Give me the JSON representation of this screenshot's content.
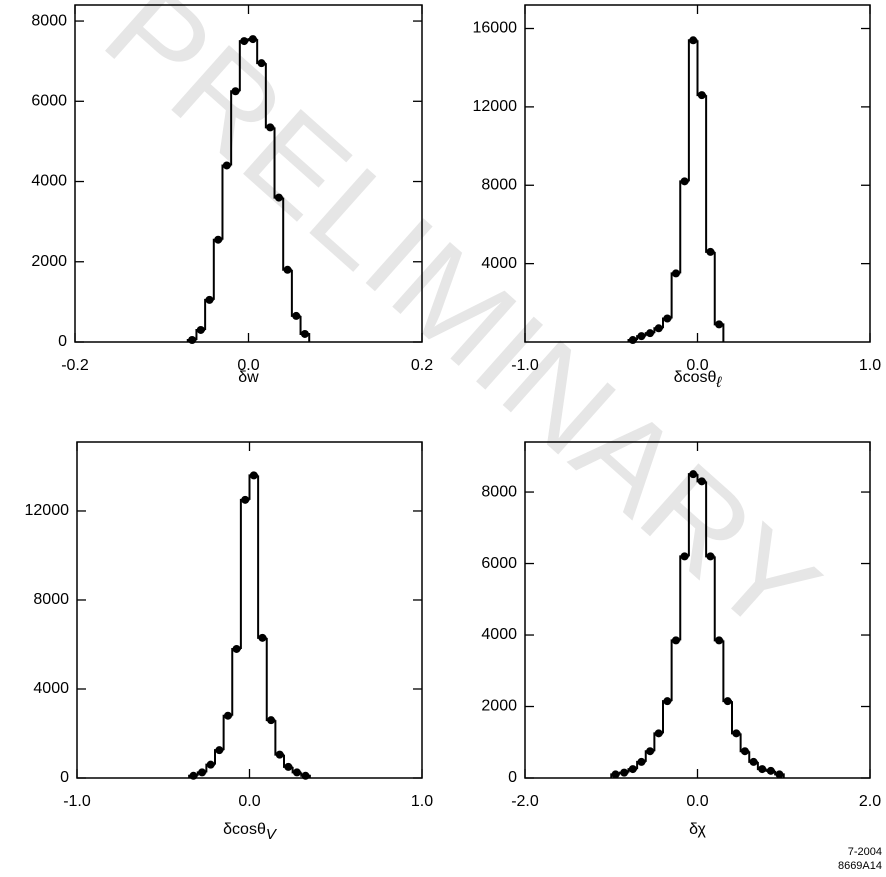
{
  "watermark": "PRELIMINARY",
  "footer": [
    "7-2004",
    "8669A14"
  ],
  "chart_data": [
    {
      "type": "histogram",
      "xlabel": "δw",
      "color": "#000000",
      "bins": [
        -0.07,
        -0.06,
        -0.05,
        -0.04,
        -0.03,
        -0.02,
        -0.01,
        0,
        0.01,
        0.02,
        0.03,
        0.04,
        0.05,
        0.06,
        0.07
      ],
      "counts": [
        50,
        300,
        1050,
        2550,
        4400,
        6250,
        7500,
        7550,
        6950,
        5350,
        3600,
        1800,
        650,
        200
      ],
      "xlim": [
        -0.2,
        0.2
      ],
      "ylim": [
        0,
        8400
      ],
      "xticks": [
        -0.2,
        {
          "value": 0,
          "label": "0.0"
        },
        0.2
      ],
      "yticks": [
        0,
        2000,
        4000,
        6000,
        8000
      ]
    },
    {
      "type": "histogram",
      "xlabel": "δcosθ",
      "xlabel_sub": "ℓ",
      "color": "#000000",
      "bins": [
        -0.4,
        -0.35,
        -0.3,
        -0.25,
        -0.2,
        -0.15,
        -0.1,
        -0.05,
        0,
        0.05,
        0.1,
        0.15
      ],
      "counts": [
        100,
        300,
        450,
        700,
        1200,
        3500,
        8200,
        15400,
        12600,
        4600,
        900
      ],
      "xlim": [
        -1,
        1
      ],
      "ylim": [
        0,
        17200
      ],
      "xticks": [
        {
          "value": -1,
          "label": "-1.0"
        },
        {
          "value": 0,
          "label": "0.0"
        },
        {
          "value": 1,
          "label": "1.0"
        }
      ],
      "yticks": [
        4000,
        8000,
        12000,
        16000
      ]
    },
    {
      "type": "histogram",
      "xlabel": "δcosθ",
      "xlabel_sub": "V",
      "color": "#000000",
      "bins": [
        -0.35,
        -0.3,
        -0.25,
        -0.2,
        -0.15,
        -0.1,
        -0.05,
        0,
        0.05,
        0.1,
        0.15,
        0.2,
        0.25,
        0.3,
        0.35
      ],
      "counts": [
        100,
        250,
        600,
        1250,
        2800,
        5800,
        12500,
        13600,
        6300,
        2600,
        1050,
        500,
        250,
        100
      ],
      "xlim": [
        -1,
        1
      ],
      "ylim": [
        0,
        15100
      ],
      "xticks": [
        {
          "value": -1,
          "label": "-1.0"
        },
        {
          "value": 0,
          "label": "0.0"
        },
        {
          "value": 1,
          "label": "1.0"
        }
      ],
      "yticks": [
        0,
        4000,
        8000,
        12000
      ]
    },
    {
      "type": "histogram",
      "xlabel": "δχ",
      "color": "#000000",
      "bins": [
        -1.0,
        -0.9,
        -0.8,
        -0.7,
        -0.6,
        -0.5,
        -0.4,
        -0.3,
        -0.2,
        -0.1,
        0,
        0.1,
        0.2,
        0.3,
        0.4,
        0.5,
        0.6,
        0.7,
        0.8,
        0.9,
        1.0
      ],
      "counts": [
        100,
        150,
        250,
        450,
        750,
        1250,
        2150,
        3850,
        6200,
        8500,
        8300,
        6200,
        3850,
        2150,
        1250,
        750,
        450,
        250,
        200,
        100
      ],
      "xlim": [
        -2,
        2
      ],
      "ylim": [
        0,
        9400
      ],
      "xticks": [
        {
          "value": -2,
          "label": "-2.0"
        },
        {
          "value": 0,
          "label": "0.0"
        },
        {
          "value": 2,
          "label": "2.0"
        }
      ],
      "yticks": [
        0,
        2000,
        4000,
        6000,
        8000
      ]
    }
  ]
}
